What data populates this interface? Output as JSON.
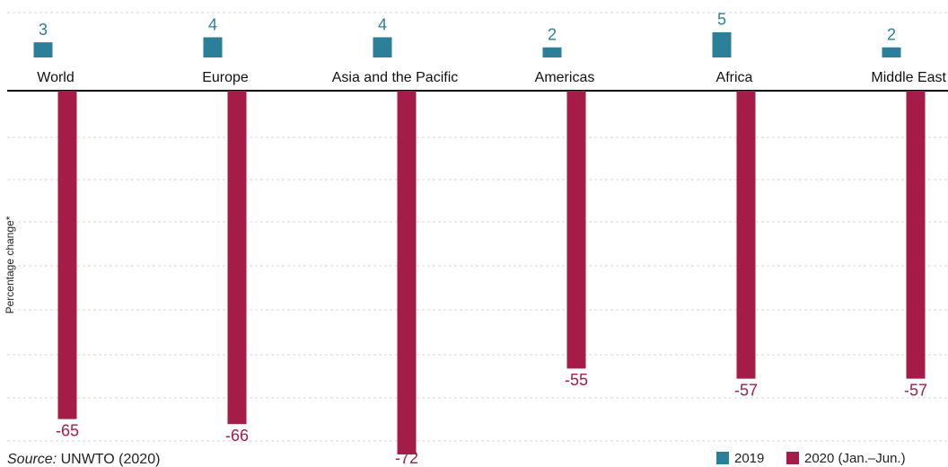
{
  "chart_data": {
    "type": "bar",
    "y_label": "Percentage change*",
    "categories": [
      "World",
      "Europe",
      "Asia and the Pacific",
      "Americas",
      "Africa",
      "Middle East"
    ],
    "series": [
      {
        "name": "2019",
        "color": "#2b7f98",
        "values": [
          3,
          4,
          4,
          2,
          5,
          2
        ]
      },
      {
        "name": "2020 (Jan.–Jun.)",
        "color": "#a51c48",
        "values": [
          -65,
          -66,
          -72,
          -55,
          -57,
          -57
        ]
      }
    ],
    "ylim": [
      -72,
      5
    ],
    "source_label": "Source:",
    "source": "UNWTO (2020)"
  }
}
